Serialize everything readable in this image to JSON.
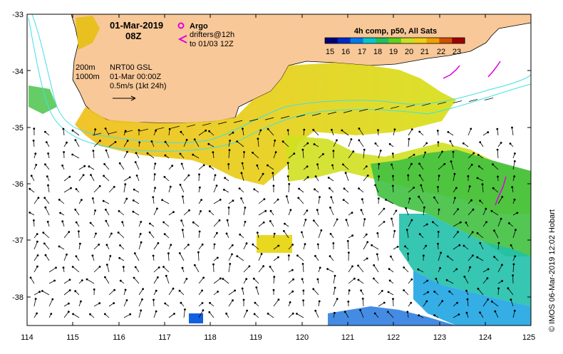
{
  "map": {
    "date": "01-Mar-2019",
    "time": "08Z",
    "argo_label": "Argo",
    "drifter_line1": "drifters@12h",
    "drifter_line2": "to 01/03 12Z",
    "colorbar_title": "4h comp, p50, All Sats",
    "colorbar_ticks": [
      "15",
      "16",
      "17",
      "18",
      "19",
      "20",
      "21",
      "22",
      "23"
    ],
    "contour_200": "200m",
    "contour_1000": "1000m",
    "model_name": "NRT00 GSL",
    "model_time": "01-Mar 00:00Z",
    "vector_scale": "0.5m/s (1kt 24h)",
    "credit": "© IMOS 06-Mar-2019 12:02 Hobart",
    "lon_ticks": [
      "114",
      "115",
      "116",
      "117",
      "118",
      "119",
      "120",
      "121",
      "122",
      "123",
      "124",
      "125"
    ],
    "lat_ticks": [
      "-33",
      "-34",
      "-35",
      "-36",
      "-37",
      "-38"
    ],
    "colors": {
      "land": "#f8c898",
      "bathy": "#40e0e8",
      "argo": "#e000e0",
      "scale": [
        "#00007a",
        "#0028c8",
        "#0078f0",
        "#00c8d0",
        "#20c060",
        "#60d020",
        "#c8e020",
        "#f0d010",
        "#f0a000",
        "#d05000",
        "#a00000"
      ]
    }
  }
}
